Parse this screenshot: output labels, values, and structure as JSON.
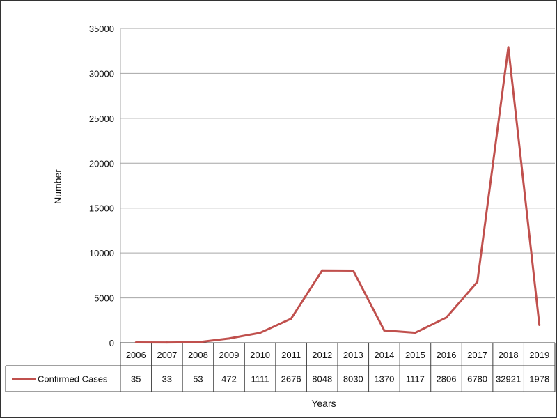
{
  "chart_data": {
    "type": "line",
    "title": "",
    "xlabel": "Years",
    "ylabel": "Number",
    "ylim": [
      0,
      35000
    ],
    "yticks": [
      0,
      5000,
      10000,
      15000,
      20000,
      25000,
      30000,
      35000
    ],
    "grid": true,
    "legend": "data-table",
    "categories": [
      "2006",
      "2007",
      "2008",
      "2009",
      "2010",
      "2011",
      "2012",
      "2013",
      "2014",
      "2015",
      "2016",
      "2017",
      "2018",
      "2019"
    ],
    "series": [
      {
        "name": "Confirmed Cases",
        "color": "#c0504d",
        "values": [
          35,
          33,
          53,
          472,
          1111,
          2676,
          8048,
          8030,
          1370,
          1117,
          2806,
          6780,
          32921,
          1978
        ]
      }
    ]
  }
}
